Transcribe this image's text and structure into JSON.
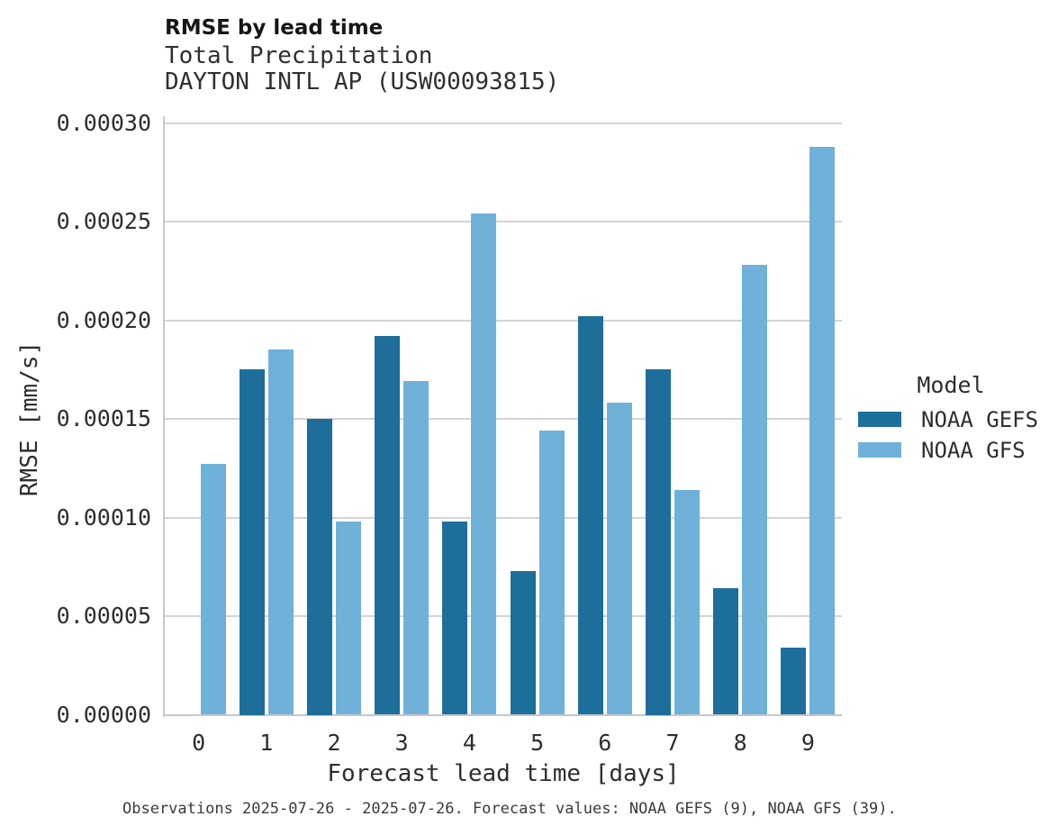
{
  "chart_data": {
    "type": "bar",
    "title": "RMSE by lead time",
    "subtitle": "Total Precipitation",
    "subtitle2": "DAYTON INTL AP (USW00093815)",
    "xlabel": "Forecast lead time [days]",
    "ylabel": "RMSE [mm/s]",
    "categories": [
      "0",
      "1",
      "2",
      "3",
      "4",
      "5",
      "6",
      "7",
      "8",
      "9"
    ],
    "series": [
      {
        "name": "NOAA GEFS",
        "color": "#1e6e9c",
        "values": [
          null,
          0.000175,
          0.00015,
          0.000192,
          9.8e-05,
          7.3e-05,
          0.000202,
          0.000175,
          6.4e-05,
          3.4e-05
        ]
      },
      {
        "name": "NOAA GFS",
        "color": "#6fb1d8",
        "values": [
          0.000127,
          0.000185,
          9.8e-05,
          0.000169,
          0.000254,
          0.000144,
          0.000158,
          0.000114,
          0.000228,
          0.000288
        ]
      }
    ],
    "ylim": [
      0,
      0.0003
    ],
    "yticks": [
      0,
      5e-05,
      0.0001,
      0.00015,
      0.0002,
      0.00025,
      0.0003
    ],
    "ytick_labels": [
      "0.00000",
      "0.00005",
      "0.00010",
      "0.00015",
      "0.00020",
      "0.00025",
      "0.00030"
    ],
    "grid": "horizontal",
    "legend": {
      "title": "Model",
      "position": "right"
    },
    "caption": "Observations 2025-07-26 - 2025-07-26. Forecast values: NOAA GEFS (9), NOAA GFS (39)."
  },
  "colors": {
    "grid": "#d4d4d4",
    "axis": "#c7c7c7",
    "tick_text": "#2e2e2e"
  }
}
